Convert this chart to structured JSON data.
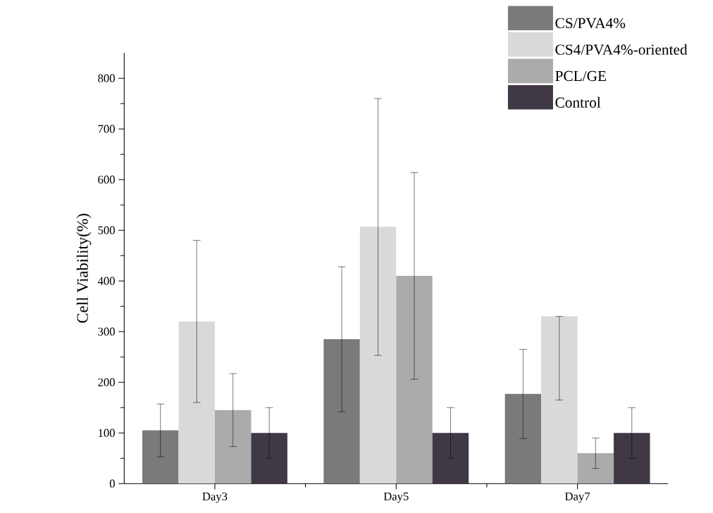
{
  "chart_data": {
    "type": "bar",
    "ylabel": "Cell Viability(%)",
    "categories": [
      "Day3",
      "Day5",
      "Day7"
    ],
    "series": [
      {
        "name": "CS/PVA4%",
        "color": "#7a7a7a",
        "values": [
          105,
          285,
          177
        ],
        "errors": [
          52,
          143,
          88
        ]
      },
      {
        "name": "CS4/PVA4%-oriented",
        "color": "#d9d9d9",
        "values": [
          320,
          507,
          330
        ],
        "errors": [
          [
            160,
            480
          ],
          [
            253,
            760
          ],
          [
            165,
            330
          ]
        ]
      },
      {
        "name": "PCL/GE",
        "color": "#ababab",
        "values": [
          145,
          410,
          60
        ],
        "errors": [
          72,
          204,
          30
        ]
      },
      {
        "name": "Control",
        "color": "#413846",
        "values": [
          100,
          100,
          100
        ],
        "errors": [
          50,
          50,
          50
        ]
      }
    ],
    "ylim": [
      0,
      850
    ],
    "yticks": [
      0,
      100,
      200,
      300,
      400,
      500,
      600,
      700,
      800
    ],
    "grid": false,
    "legend": "top right"
  }
}
